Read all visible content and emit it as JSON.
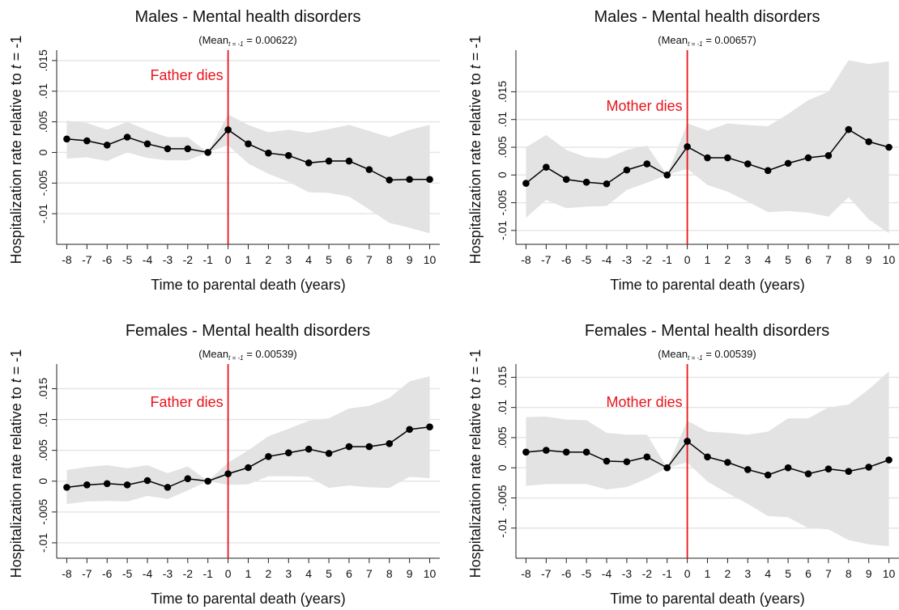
{
  "chart_data": [
    {
      "type": "line",
      "title": "Males - Mental health disorders",
      "subtitle": {
        "prefix": "(Mean",
        "sub": "t = -1",
        "suffix": " = 0.00622)"
      },
      "xlabel": "Time to parental death (years)",
      "ylabel": {
        "prefix": "Hospitalization rate relative to ",
        "italic": "t",
        "suffix": " = -1"
      },
      "x": [
        -8,
        -7,
        -6,
        -5,
        -4,
        -3,
        -2,
        -1,
        0,
        1,
        2,
        3,
        4,
        5,
        6,
        7,
        8,
        9,
        10
      ],
      "values": [
        0.0022,
        0.0019,
        0.0012,
        0.0025,
        0.0014,
        0.0006,
        0.0006,
        0,
        0.0037,
        0.0014,
        -0.0001,
        -0.0005,
        -0.0017,
        -0.0014,
        -0.0014,
        -0.0028,
        -0.0045,
        -0.0044,
        -0.0044
      ],
      "ci_upper": [
        0.0052,
        0.0048,
        0.0037,
        0.005,
        0.0036,
        0.0025,
        0.0025,
        0,
        0.0062,
        0.0045,
        0.0033,
        0.0037,
        0.0032,
        0.0038,
        0.0045,
        0.0035,
        0.0025,
        0.0037,
        0.0045
      ],
      "ci_lower": [
        -0.001,
        -0.0008,
        -0.0014,
        0,
        -0.0009,
        -0.0013,
        -0.0013,
        0,
        0.0012,
        -0.0018,
        -0.0035,
        -0.0048,
        -0.0065,
        -0.0066,
        -0.0072,
        -0.0093,
        -0.0115,
        -0.0123,
        -0.0132
      ],
      "color": "#000000",
      "ci_color": "#e3e3e3",
      "xlim": [
        -8.5,
        10.5
      ],
      "ylim": [
        -0.015,
        0.0167
      ],
      "xticks": [
        -8,
        -7,
        -6,
        -5,
        -4,
        -3,
        -2,
        -1,
        0,
        1,
        2,
        3,
        4,
        5,
        6,
        7,
        8,
        9,
        10
      ],
      "yticks": [
        {
          "value": -0.01,
          "label": "-.01"
        },
        {
          "value": -0.005,
          "label": "-.005"
        },
        0,
        {
          "value": 0.005,
          "label": ".005"
        },
        {
          "value": 0.01,
          "label": ".01"
        },
        {
          "value": 0.015,
          "label": ".015"
        }
      ],
      "grid": true,
      "vline": {
        "x": 0,
        "label": "Father dies",
        "color": "#e8141c"
      }
    },
    {
      "type": "line",
      "title": "Males - Mental health disorders",
      "subtitle": {
        "prefix": "(Mean",
        "sub": "t = -1",
        "suffix": " = 0.00657)"
      },
      "xlabel": "Time to parental death (years)",
      "ylabel": {
        "prefix": "Hospitalization rate relative to ",
        "italic": "t",
        "suffix": " = -1"
      },
      "x": [
        -8,
        -7,
        -6,
        -5,
        -4,
        -3,
        -2,
        -1,
        0,
        1,
        2,
        3,
        4,
        5,
        6,
        7,
        8,
        9,
        10
      ],
      "values": [
        -0.0015,
        0.0014,
        -0.0008,
        -0.0013,
        -0.0016,
        0.0009,
        0.002,
        0,
        0.0051,
        0.0031,
        0.0031,
        0.002,
        0.0008,
        0.0021,
        0.0031,
        0.0035,
        0.0082,
        0.006,
        0.005
      ],
      "ci_upper": [
        0.005,
        0.0072,
        0.0045,
        0.0032,
        0.003,
        0.0045,
        0.0053,
        0,
        0.0093,
        0.008,
        0.0093,
        0.009,
        0.0088,
        0.011,
        0.0135,
        0.015,
        0.0207,
        0.02,
        0.0205
      ],
      "ci_lower": [
        -0.0077,
        -0.0045,
        -0.006,
        -0.0057,
        -0.0056,
        -0.0027,
        -0.0014,
        0,
        0.0011,
        -0.0018,
        -0.003,
        -0.0048,
        -0.0067,
        -0.0065,
        -0.0068,
        -0.0075,
        -0.004,
        -0.008,
        -0.0105
      ],
      "color": "#000000",
      "ci_color": "#e3e3e3",
      "xlim": [
        -8.5,
        10.5
      ],
      "ylim": [
        -0.0125,
        0.0225
      ],
      "xticks": [
        -8,
        -7,
        -6,
        -5,
        -4,
        -3,
        -2,
        -1,
        0,
        1,
        2,
        3,
        4,
        5,
        6,
        7,
        8,
        9,
        10
      ],
      "yticks": [
        {
          "value": -0.01,
          "label": "-.01"
        },
        {
          "value": -0.005,
          "label": "-.005"
        },
        0,
        {
          "value": 0.005,
          "label": ".005"
        },
        {
          "value": 0.01,
          "label": ".01"
        },
        {
          "value": 0.015,
          "label": ".015"
        }
      ],
      "grid": true,
      "vline": {
        "x": 0,
        "label": "Mother dies",
        "color": "#e8141c"
      }
    },
    {
      "type": "line",
      "title": "Females - Mental health disorders",
      "subtitle": {
        "prefix": "(Mean",
        "sub": "t = -1",
        "suffix": " = 0.00539)"
      },
      "xlabel": "Time to parental death (years)",
      "ylabel": {
        "prefix": "Hospitalization rate relative to ",
        "italic": "t",
        "suffix": " = -1"
      },
      "x": [
        -8,
        -7,
        -6,
        -5,
        -4,
        -3,
        -2,
        -1,
        0,
        1,
        2,
        3,
        4,
        5,
        6,
        7,
        8,
        9,
        10
      ],
      "values": [
        -0.001,
        -0.0006,
        -0.0004,
        -0.0006,
        0.0001,
        -0.001,
        0.0004,
        0,
        0.0012,
        0.0022,
        0.004,
        0.0046,
        0.0052,
        0.0045,
        0.0056,
        0.0056,
        0.0061,
        0.0084,
        0.0088
      ],
      "ci_upper": [
        0.0018,
        0.0023,
        0.0026,
        0.0021,
        0.0026,
        0.0013,
        0.0024,
        0,
        0.003,
        0.005,
        0.0073,
        0.0085,
        0.0098,
        0.0102,
        0.0118,
        0.0122,
        0.0135,
        0.0162,
        0.017
      ],
      "ci_lower": [
        -0.0037,
        -0.0033,
        -0.0032,
        -0.0033,
        -0.0024,
        -0.0029,
        -0.0015,
        0,
        -0.0006,
        -0.0005,
        0.0008,
        0.0008,
        0.0007,
        -0.0011,
        -0.0007,
        -0.001,
        -0.0011,
        0.0007,
        0.0005
      ],
      "color": "#000000",
      "ci_color": "#e3e3e3",
      "xlim": [
        -8.5,
        10.5
      ],
      "ylim": [
        -0.0125,
        0.019
      ],
      "xticks": [
        -8,
        -7,
        -6,
        -5,
        -4,
        -3,
        -2,
        -1,
        0,
        1,
        2,
        3,
        4,
        5,
        6,
        7,
        8,
        9,
        10
      ],
      "yticks": [
        {
          "value": -0.01,
          "label": "-.01"
        },
        {
          "value": -0.005,
          "label": "-.005"
        },
        0,
        {
          "value": 0.005,
          "label": ".005"
        },
        {
          "value": 0.01,
          "label": ".01"
        },
        {
          "value": 0.015,
          "label": ".015"
        }
      ],
      "grid": true,
      "vline": {
        "x": 0,
        "label": "Father dies",
        "color": "#e8141c"
      }
    },
    {
      "type": "line",
      "title": "Females - Mental health disorders",
      "subtitle": {
        "prefix": "(Mean",
        "sub": "t = -1",
        "suffix": " = 0.00539)"
      },
      "xlabel": "Time to parental death (years)",
      "ylabel": {
        "prefix": "Hospitalization rate relative to ",
        "italic": "t",
        "suffix": " = -1"
      },
      "x": [
        -8,
        -7,
        -6,
        -5,
        -4,
        -3,
        -2,
        -1,
        0,
        1,
        2,
        3,
        4,
        5,
        6,
        7,
        8,
        9,
        10
      ],
      "values": [
        0.0026,
        0.0029,
        0.0026,
        0.0026,
        0.0011,
        0.001,
        0.0018,
        0,
        0.0044,
        0.0018,
        0.0009,
        -0.0003,
        -0.0012,
        0,
        -0.001,
        -0.0002,
        -0.0006,
        0.0001,
        0.0013
      ],
      "ci_upper": [
        0.0084,
        0.0085,
        0.008,
        0.0079,
        0.0058,
        0.0055,
        0.0055,
        0,
        0.0078,
        0.006,
        0.0058,
        0.0055,
        0.006,
        0.0082,
        0.0082,
        0.01,
        0.0105,
        0.013,
        0.016
      ],
      "ci_lower": [
        -0.003,
        -0.0027,
        -0.0027,
        -0.0027,
        -0.0036,
        -0.0032,
        -0.0018,
        0,
        0.0009,
        -0.0023,
        -0.0042,
        -0.006,
        -0.008,
        -0.0082,
        -0.01,
        -0.0102,
        -0.012,
        -0.0127,
        -0.013
      ],
      "color": "#000000",
      "ci_color": "#e3e3e3",
      "xlim": [
        -8.5,
        10.5
      ],
      "ylim": [
        -0.015,
        0.0172
      ],
      "xticks": [
        -8,
        -7,
        -6,
        -5,
        -4,
        -3,
        -2,
        -1,
        0,
        1,
        2,
        3,
        4,
        5,
        6,
        7,
        8,
        9,
        10
      ],
      "yticks": [
        {
          "value": -0.01,
          "label": "-.01"
        },
        {
          "value": -0.005,
          "label": "-.005"
        },
        0,
        {
          "value": 0.005,
          "label": ".005"
        },
        {
          "value": 0.01,
          "label": ".01"
        },
        {
          "value": 0.015,
          "label": ".015"
        }
      ],
      "grid": true,
      "vline": {
        "x": 0,
        "label": "Mother dies",
        "color": "#e8141c"
      }
    }
  ]
}
